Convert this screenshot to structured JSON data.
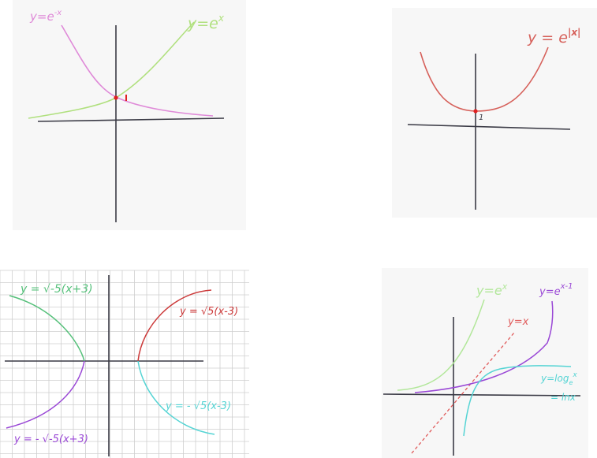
{
  "colors": {
    "axis": "#3a3a45",
    "exp": "#b0e07e",
    "expneg": "#df8ad8",
    "exp_abs": "#d6605a",
    "point": "#e02020",
    "grid": "#cfcfcf",
    "green": "#55c07a",
    "purple": "#9a48d6",
    "red": "#cc3b3b",
    "cyan": "#55d4d4",
    "lightgreen": "#b2e79a",
    "dashed_red": "#e05a5a"
  },
  "panel1": {
    "label_exp_neg": "y=e",
    "label_exp_neg_sup": "-x",
    "label_exp": "y=e",
    "label_exp_sup": "x",
    "intercept_label": "1"
  },
  "panel2": {
    "label": "y = e",
    "label_sup": "|x|",
    "intercept_label": "1"
  },
  "panel3": {
    "label_green": "y = √-5(x+3)",
    "label_red": "y = √5(x-3)",
    "label_cyan": "y = - √5(x-3)",
    "label_purple": "y = - √-5(x+3)"
  },
  "panel4": {
    "label_exp": "y=e",
    "label_exp_sup": "x",
    "label_shift": "y=e",
    "label_shift_sup": "x-1",
    "label_line": "y=x",
    "label_log": "y=log",
    "label_log_sub": "e",
    "label_log_sup": "x",
    "label_ln": "= lnx"
  }
}
